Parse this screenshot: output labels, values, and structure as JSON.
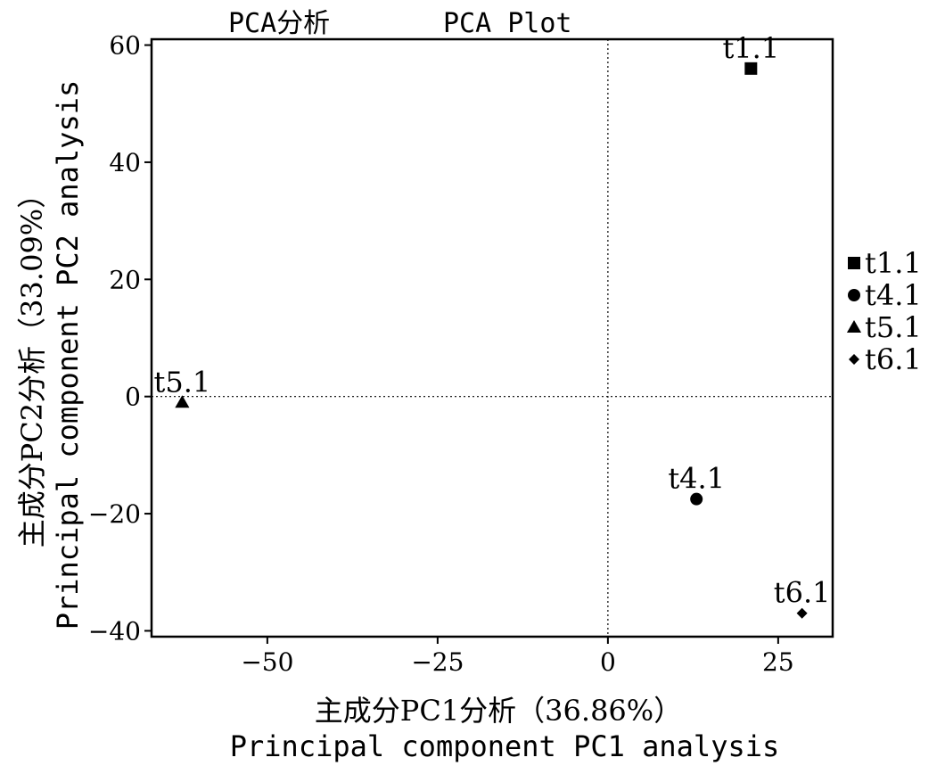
{
  "chart_data": {
    "type": "scatter",
    "titles": [
      "PCA分析",
      "PCA Plot"
    ],
    "xlabel": [
      "主成分PC1分析（36.86%）",
      "Principal component PC1 analysis"
    ],
    "ylabel": [
      "主成分PC2分析（33.09%）",
      "Principal component PC2 analysis"
    ],
    "xlim": [
      -67,
      33
    ],
    "ylim": [
      -41,
      61
    ],
    "xticks": [
      -50,
      -25,
      0,
      25
    ],
    "yticks": [
      -40,
      -20,
      0,
      20,
      40,
      60
    ],
    "xtick_labels": [
      "−50",
      "−25",
      "0",
      "25"
    ],
    "ytick_labels": [
      "−40",
      "−20",
      "0",
      "20",
      "40",
      "60"
    ],
    "reference_lines": {
      "x": 0,
      "y": 0,
      "style": "dotted"
    },
    "legend_position": "right",
    "points": [
      {
        "name": "t1.1",
        "x": 21,
        "y": 56,
        "marker": "square"
      },
      {
        "name": "t4.1",
        "x": 13,
        "y": -17.5,
        "marker": "circle"
      },
      {
        "name": "t5.1",
        "x": -62.5,
        "y": -1,
        "marker": "triangle"
      },
      {
        "name": "t6.1",
        "x": 28.5,
        "y": -37,
        "marker": "diamond"
      }
    ],
    "colors": {
      "marker": "#000000",
      "axis": "#000000",
      "background": "#ffffff"
    }
  }
}
